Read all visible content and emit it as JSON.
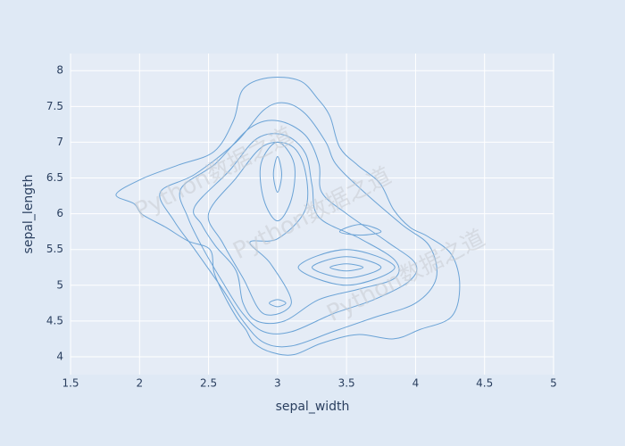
{
  "chart_data": {
    "type": "contour",
    "x_label": "sepal_width",
    "y_label": "sepal_length",
    "xlim": [
      1.5,
      5
    ],
    "ylim": [
      3.75,
      8.24
    ],
    "xticks": [
      1.5,
      2,
      2.5,
      3,
      3.5,
      4,
      4.5,
      5
    ],
    "yticks": [
      4,
      4.5,
      5,
      5.5,
      6,
      6.5,
      7,
      7.5,
      8
    ],
    "grid": true,
    "color": "#6ba3d6",
    "watermark": [
      "Python数据之道",
      "Python数据之道",
      "Python数据之道"
    ],
    "contours": [
      {
        "x": [
          1.83,
          2.02,
          2.28,
          2.54,
          2.68,
          2.75,
          2.93,
          3.16,
          3.29,
          3.38,
          3.45,
          3.58,
          3.74,
          3.84,
          3.96,
          4.09,
          4.26,
          4.32,
          4.26,
          4.03,
          3.84,
          3.58,
          3.32,
          3.12,
          2.96,
          2.83,
          2.77,
          2.7,
          2.61,
          2.54,
          2.51,
          2.35,
          2.19,
          2.02,
          1.96
        ],
        "y": [
          6.27,
          6.49,
          6.68,
          6.87,
          7.3,
          7.74,
          7.9,
          7.86,
          7.61,
          7.36,
          6.93,
          6.68,
          6.43,
          6.06,
          5.81,
          5.68,
          5.43,
          5.0,
          4.56,
          4.38,
          4.25,
          4.31,
          4.19,
          4.03,
          4.06,
          4.19,
          4.38,
          4.56,
          4.87,
          5.18,
          5.5,
          5.62,
          5.81,
          5.99,
          6.14
        ]
      },
      {
        "x": [
          2.15,
          2.4,
          2.7,
          2.9,
          3.05,
          3.2,
          3.35,
          3.42,
          3.6,
          3.9,
          4.1,
          4.15,
          4.0,
          3.7,
          3.4,
          3.1,
          2.9,
          2.75,
          2.6,
          2.4,
          2.25
        ],
        "y": [
          6.3,
          6.55,
          7.0,
          7.45,
          7.55,
          7.4,
          7.0,
          6.7,
          6.35,
          5.85,
          5.55,
          5.1,
          4.75,
          4.55,
          4.35,
          4.15,
          4.2,
          4.5,
          4.95,
          5.5,
          5.9
        ]
      },
      {
        "x": [
          2.3,
          2.55,
          2.8,
          3.0,
          3.2,
          3.3,
          3.32,
          3.5,
          3.8,
          4.0,
          3.95,
          3.7,
          3.4,
          3.1,
          2.9,
          2.75,
          2.6,
          2.45,
          2.35
        ],
        "y": [
          6.35,
          6.7,
          7.2,
          7.3,
          7.1,
          6.7,
          6.3,
          6.0,
          5.6,
          5.3,
          5.05,
          4.8,
          4.6,
          4.35,
          4.35,
          4.6,
          5.05,
          5.55,
          5.95
        ]
      },
      {
        "x": [
          2.4,
          2.65,
          2.85,
          3.05,
          3.2,
          3.25,
          3.3,
          3.6,
          3.85,
          3.85,
          3.6,
          3.3,
          3.05,
          2.85,
          2.75,
          2.7,
          2.55,
          2.45
        ],
        "y": [
          6.1,
          6.6,
          7.05,
          7.1,
          6.85,
          6.4,
          5.95,
          5.65,
          5.35,
          5.1,
          4.95,
          4.8,
          4.5,
          4.5,
          4.75,
          5.2,
          5.55,
          5.85
        ]
      },
      {
        "x": [
          2.5,
          2.7,
          2.9,
          3.1,
          3.2,
          3.2,
          3.0,
          2.8,
          2.95,
          3.1,
          2.9,
          2.75,
          2.6
        ],
        "y": [
          6.0,
          6.5,
          6.95,
          6.95,
          6.6,
          6.05,
          5.65,
          5.6,
          5.3,
          4.75,
          4.6,
          5.1,
          5.6
        ]
      },
      {
        "x": [
          3.0,
          3.12,
          3.1,
          3.0,
          2.9,
          2.88
        ],
        "y": [
          7.0,
          6.7,
          6.2,
          5.9,
          6.2,
          6.7
        ]
      },
      {
        "x": [
          3.0,
          3.03,
          3.0,
          2.97
        ],
        "y": [
          6.8,
          6.55,
          6.3,
          6.55
        ]
      },
      {
        "x": [
          3.5,
          3.85,
          3.5,
          3.15
        ],
        "y": [
          5.5,
          5.25,
          5.0,
          5.25
        ]
      },
      {
        "x": [
          3.5,
          3.75,
          3.5,
          3.25
        ],
        "y": [
          5.4,
          5.25,
          5.1,
          5.25
        ]
      },
      {
        "x": [
          3.5,
          3.62,
          3.5,
          3.38
        ],
        "y": [
          5.3,
          5.25,
          5.2,
          5.25
        ]
      },
      {
        "x": [
          3.0,
          3.06,
          3.0,
          2.94
        ],
        "y": [
          4.8,
          4.75,
          4.7,
          4.75
        ]
      },
      {
        "x": [
          3.45,
          3.6,
          3.75,
          3.6
        ],
        "y": [
          5.75,
          5.85,
          5.75,
          5.7
        ]
      }
    ]
  }
}
